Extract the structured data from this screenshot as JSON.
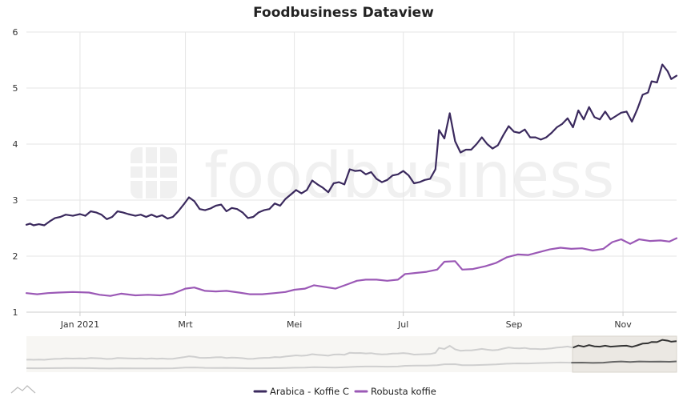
{
  "chart_data": {
    "type": "line",
    "title": "Foodbusiness Dataview",
    "watermark": "foodbusiness",
    "xlabel": "",
    "ylabel": "",
    "x_range": [
      "2020-12-02",
      "2021-12-01"
    ],
    "ylim": [
      1,
      6
    ],
    "yticks": [
      "1",
      "2",
      "3",
      "4",
      "5",
      "6"
    ],
    "xticks": [
      {
        "date": "2021-01-01",
        "label": "Jan 2021"
      },
      {
        "date": "2021-03-01",
        "label": "Mrt"
      },
      {
        "date": "2021-05-01",
        "label": "Mei"
      },
      {
        "date": "2021-07-01",
        "label": "Jul"
      },
      {
        "date": "2021-09-01",
        "label": "Sep"
      },
      {
        "date": "2021-11-01",
        "label": "Nov"
      }
    ],
    "legend_position": "bottom-center",
    "navigator": {
      "selected_fraction": [
        0.84,
        1.0
      ]
    },
    "series": [
      {
        "name": "Arabica - Koffie C",
        "color": "#3b2a5e",
        "points": [
          [
            "2020-12-02",
            2.56
          ],
          [
            "2020-12-04",
            2.58
          ],
          [
            "2020-12-06",
            2.55
          ],
          [
            "2020-12-09",
            2.57
          ],
          [
            "2020-12-12",
            2.55
          ],
          [
            "2020-12-15",
            2.62
          ],
          [
            "2020-12-18",
            2.68
          ],
          [
            "2020-12-21",
            2.7
          ],
          [
            "2020-12-24",
            2.74
          ],
          [
            "2020-12-28",
            2.72
          ],
          [
            "2021-01-01",
            2.75
          ],
          [
            "2021-01-04",
            2.72
          ],
          [
            "2021-01-07",
            2.8
          ],
          [
            "2021-01-10",
            2.78
          ],
          [
            "2021-01-13",
            2.74
          ],
          [
            "2021-01-16",
            2.66
          ],
          [
            "2021-01-19",
            2.7
          ],
          [
            "2021-01-22",
            2.8
          ],
          [
            "2021-01-25",
            2.78
          ],
          [
            "2021-01-28",
            2.75
          ],
          [
            "2021-02-01",
            2.72
          ],
          [
            "2021-02-04",
            2.74
          ],
          [
            "2021-02-07",
            2.7
          ],
          [
            "2021-02-10",
            2.74
          ],
          [
            "2021-02-13",
            2.7
          ],
          [
            "2021-02-16",
            2.73
          ],
          [
            "2021-02-19",
            2.67
          ],
          [
            "2021-02-22",
            2.7
          ],
          [
            "2021-02-25",
            2.8
          ],
          [
            "2021-02-28",
            2.92
          ],
          [
            "2021-03-03",
            3.05
          ],
          [
            "2021-03-06",
            2.98
          ],
          [
            "2021-03-09",
            2.84
          ],
          [
            "2021-03-12",
            2.82
          ],
          [
            "2021-03-15",
            2.85
          ],
          [
            "2021-03-18",
            2.9
          ],
          [
            "2021-03-21",
            2.92
          ],
          [
            "2021-03-24",
            2.8
          ],
          [
            "2021-03-27",
            2.86
          ],
          [
            "2021-03-30",
            2.84
          ],
          [
            "2021-04-02",
            2.78
          ],
          [
            "2021-04-05",
            2.68
          ],
          [
            "2021-04-08",
            2.7
          ],
          [
            "2021-04-11",
            2.78
          ],
          [
            "2021-04-14",
            2.82
          ],
          [
            "2021-04-17",
            2.84
          ],
          [
            "2021-04-20",
            2.94
          ],
          [
            "2021-04-23",
            2.9
          ],
          [
            "2021-04-26",
            3.02
          ],
          [
            "2021-04-29",
            3.1
          ],
          [
            "2021-05-02",
            3.18
          ],
          [
            "2021-05-05",
            3.12
          ],
          [
            "2021-05-08",
            3.18
          ],
          [
            "2021-05-11",
            3.35
          ],
          [
            "2021-05-14",
            3.28
          ],
          [
            "2021-05-17",
            3.22
          ],
          [
            "2021-05-20",
            3.14
          ],
          [
            "2021-05-23",
            3.3
          ],
          [
            "2021-05-26",
            3.32
          ],
          [
            "2021-05-29",
            3.28
          ],
          [
            "2021-06-01",
            3.55
          ],
          [
            "2021-06-04",
            3.52
          ],
          [
            "2021-06-07",
            3.53
          ],
          [
            "2021-06-10",
            3.46
          ],
          [
            "2021-06-13",
            3.5
          ],
          [
            "2021-06-16",
            3.38
          ],
          [
            "2021-06-19",
            3.32
          ],
          [
            "2021-06-22",
            3.36
          ],
          [
            "2021-06-25",
            3.44
          ],
          [
            "2021-06-28",
            3.46
          ],
          [
            "2021-07-01",
            3.52
          ],
          [
            "2021-07-04",
            3.44
          ],
          [
            "2021-07-07",
            3.3
          ],
          [
            "2021-07-10",
            3.32
          ],
          [
            "2021-07-13",
            3.36
          ],
          [
            "2021-07-16",
            3.38
          ],
          [
            "2021-07-19",
            3.55
          ],
          [
            "2021-07-21",
            4.25
          ],
          [
            "2021-07-24",
            4.1
          ],
          [
            "2021-07-27",
            4.55
          ],
          [
            "2021-07-30",
            4.05
          ],
          [
            "2021-08-02",
            3.85
          ],
          [
            "2021-08-05",
            3.9
          ],
          [
            "2021-08-08",
            3.9
          ],
          [
            "2021-08-11",
            4.0
          ],
          [
            "2021-08-14",
            4.12
          ],
          [
            "2021-08-17",
            4.0
          ],
          [
            "2021-08-20",
            3.92
          ],
          [
            "2021-08-23",
            3.98
          ],
          [
            "2021-08-26",
            4.16
          ],
          [
            "2021-08-29",
            4.32
          ],
          [
            "2021-09-01",
            4.22
          ],
          [
            "2021-09-04",
            4.2
          ],
          [
            "2021-09-07",
            4.26
          ],
          [
            "2021-09-10",
            4.12
          ],
          [
            "2021-09-13",
            4.12
          ],
          [
            "2021-09-16",
            4.08
          ],
          [
            "2021-09-19",
            4.12
          ],
          [
            "2021-09-22",
            4.2
          ],
          [
            "2021-09-25",
            4.3
          ],
          [
            "2021-09-28",
            4.36
          ],
          [
            "2021-10-01",
            4.46
          ],
          [
            "2021-10-04",
            4.3
          ],
          [
            "2021-10-07",
            4.6
          ],
          [
            "2021-10-10",
            4.44
          ],
          [
            "2021-10-13",
            4.66
          ],
          [
            "2021-10-16",
            4.48
          ],
          [
            "2021-10-19",
            4.44
          ],
          [
            "2021-10-22",
            4.58
          ],
          [
            "2021-10-25",
            4.44
          ],
          [
            "2021-10-28",
            4.5
          ],
          [
            "2021-10-31",
            4.56
          ],
          [
            "2021-11-03",
            4.58
          ],
          [
            "2021-11-06",
            4.4
          ],
          [
            "2021-11-09",
            4.62
          ],
          [
            "2021-11-12",
            4.88
          ],
          [
            "2021-11-15",
            4.92
          ],
          [
            "2021-11-17",
            5.12
          ],
          [
            "2021-11-20",
            5.1
          ],
          [
            "2021-11-23",
            5.42
          ],
          [
            "2021-11-26",
            5.3
          ],
          [
            "2021-11-28",
            5.16
          ],
          [
            "2021-12-01",
            5.22
          ]
        ]
      },
      {
        "name": "Robusta koffie",
        "color": "#9b59b6",
        "points": [
          [
            "2020-12-02",
            1.34
          ],
          [
            "2020-12-08",
            1.32
          ],
          [
            "2020-12-14",
            1.34
          ],
          [
            "2020-12-20",
            1.35
          ],
          [
            "2020-12-28",
            1.36
          ],
          [
            "2021-01-06",
            1.35
          ],
          [
            "2021-01-12",
            1.31
          ],
          [
            "2021-01-18",
            1.29
          ],
          [
            "2021-01-24",
            1.33
          ],
          [
            "2021-02-01",
            1.3
          ],
          [
            "2021-02-08",
            1.31
          ],
          [
            "2021-02-15",
            1.3
          ],
          [
            "2021-02-22",
            1.33
          ],
          [
            "2021-03-01",
            1.42
          ],
          [
            "2021-03-06",
            1.44
          ],
          [
            "2021-03-12",
            1.38
          ],
          [
            "2021-03-18",
            1.37
          ],
          [
            "2021-03-24",
            1.38
          ],
          [
            "2021-03-31",
            1.35
          ],
          [
            "2021-04-06",
            1.32
          ],
          [
            "2021-04-13",
            1.32
          ],
          [
            "2021-04-20",
            1.34
          ],
          [
            "2021-04-26",
            1.36
          ],
          [
            "2021-05-01",
            1.4
          ],
          [
            "2021-05-07",
            1.42
          ],
          [
            "2021-05-12",
            1.48
          ],
          [
            "2021-05-18",
            1.45
          ],
          [
            "2021-05-24",
            1.42
          ],
          [
            "2021-05-31",
            1.5
          ],
          [
            "2021-06-05",
            1.56
          ],
          [
            "2021-06-10",
            1.58
          ],
          [
            "2021-06-16",
            1.58
          ],
          [
            "2021-06-22",
            1.56
          ],
          [
            "2021-06-28",
            1.58
          ],
          [
            "2021-07-02",
            1.68
          ],
          [
            "2021-07-08",
            1.7
          ],
          [
            "2021-07-14",
            1.72
          ],
          [
            "2021-07-20",
            1.76
          ],
          [
            "2021-07-24",
            1.9
          ],
          [
            "2021-07-30",
            1.91
          ],
          [
            "2021-08-03",
            1.76
          ],
          [
            "2021-08-09",
            1.77
          ],
          [
            "2021-08-16",
            1.82
          ],
          [
            "2021-08-22",
            1.88
          ],
          [
            "2021-08-28",
            1.98
          ],
          [
            "2021-09-03",
            2.03
          ],
          [
            "2021-09-09",
            2.02
          ],
          [
            "2021-09-15",
            2.07
          ],
          [
            "2021-09-21",
            2.12
          ],
          [
            "2021-09-27",
            2.15
          ],
          [
            "2021-10-03",
            2.13
          ],
          [
            "2021-10-09",
            2.14
          ],
          [
            "2021-10-15",
            2.1
          ],
          [
            "2021-10-21",
            2.13
          ],
          [
            "2021-10-26",
            2.25
          ],
          [
            "2021-10-31",
            2.3
          ],
          [
            "2021-11-05",
            2.22
          ],
          [
            "2021-11-10",
            2.3
          ],
          [
            "2021-11-16",
            2.27
          ],
          [
            "2021-11-22",
            2.28
          ],
          [
            "2021-11-27",
            2.26
          ],
          [
            "2021-12-01",
            2.32
          ]
        ]
      }
    ]
  }
}
